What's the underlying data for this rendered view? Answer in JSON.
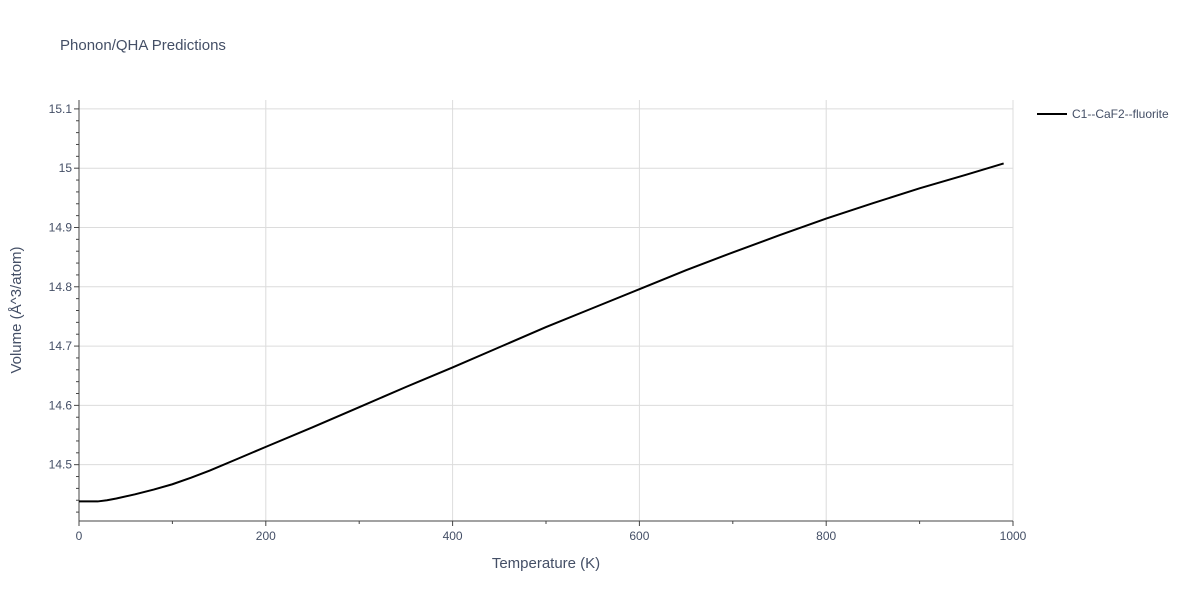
{
  "chart_data": {
    "type": "line",
    "title": "Phonon/QHA Predictions",
    "xlabel": "Temperature (K)",
    "ylabel": "Volume (Å^3/atom)",
    "xlim": [
      0,
      1000
    ],
    "ylim": [
      14.405,
      15.115
    ],
    "xticks": [
      0,
      200,
      400,
      600,
      800,
      1000
    ],
    "xtick_labels": [
      "0",
      "200",
      "400",
      "600",
      "800",
      "1000"
    ],
    "yticks": [
      14.5,
      14.6,
      14.7,
      14.8,
      14.9,
      15.0,
      15.1
    ],
    "ytick_labels": [
      "14.5",
      "14.6",
      "14.7",
      "14.8",
      "14.9",
      "15",
      "15.1"
    ],
    "grid": true,
    "legend_position": "top-right",
    "colors": {
      "series": "#000000",
      "text": "#444f66",
      "grid": "#dcdcdc",
      "axis": "#444444"
    },
    "series": [
      {
        "name": "C1--CaF2--fluorite",
        "x": [
          0,
          20,
          30,
          40,
          60,
          80,
          100,
          120,
          140,
          170,
          200,
          250,
          300,
          350,
          400,
          450,
          500,
          550,
          600,
          650,
          700,
          750,
          800,
          850,
          900,
          950,
          990
        ],
        "y": [
          14.438,
          14.438,
          14.44,
          14.443,
          14.45,
          14.458,
          14.467,
          14.478,
          14.49,
          14.51,
          14.53,
          14.563,
          14.597,
          14.631,
          14.664,
          14.698,
          14.732,
          14.764,
          14.796,
          14.828,
          14.858,
          14.887,
          14.915,
          14.941,
          14.966,
          14.989,
          15.008
        ]
      }
    ]
  }
}
